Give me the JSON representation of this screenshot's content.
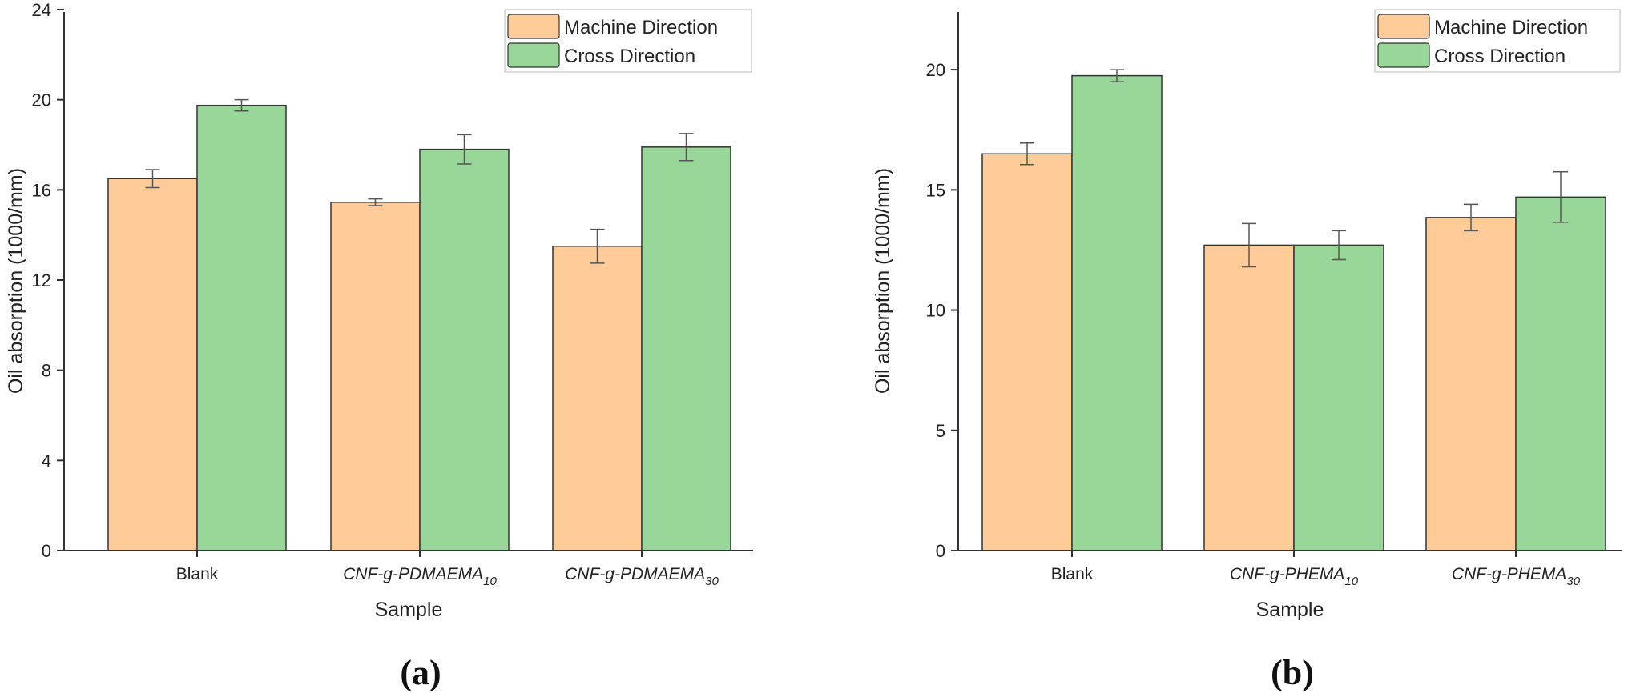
{
  "colors": {
    "machine": "#FFCC99",
    "cross": "#99D699",
    "edge": "#333333",
    "error": "#555555"
  },
  "chart_data": [
    {
      "panel": "(a)",
      "type": "bar",
      "categories": [
        {
          "name": "Blank",
          "sub": ""
        },
        {
          "name": "CNF-g-PDMAEMA",
          "sub": "10"
        },
        {
          "name": "CNF-g-PDMAEMA",
          "sub": "30"
        }
      ],
      "series": [
        {
          "name": "Machine Direction",
          "values": [
            16.5,
            15.45,
            13.5
          ],
          "errors": [
            0.4,
            0.15,
            0.75
          ]
        },
        {
          "name": "Cross Direction",
          "values": [
            19.75,
            17.8,
            17.9
          ],
          "errors": [
            0.25,
            0.65,
            0.6
          ]
        }
      ],
      "xlabel": "Sample",
      "ylabel": "Oil absorption (1000/mm)",
      "ylim": [
        0,
        24
      ],
      "yticks": [
        0,
        4,
        8,
        12,
        16,
        20,
        24
      ],
      "legend": "top-right"
    },
    {
      "panel": "(b)",
      "type": "bar",
      "categories": [
        {
          "name": "Blank",
          "sub": ""
        },
        {
          "name": "CNF-g-PHEMA",
          "sub": "10"
        },
        {
          "name": "CNF-g-PHEMA",
          "sub": "30"
        }
      ],
      "series": [
        {
          "name": "Machine Direction",
          "values": [
            16.5,
            12.7,
            13.85
          ],
          "errors": [
            0.45,
            0.9,
            0.55
          ]
        },
        {
          "name": "Cross Direction",
          "values": [
            19.75,
            12.7,
            14.7
          ],
          "errors": [
            0.25,
            0.6,
            1.05
          ]
        }
      ],
      "xlabel": "Sample",
      "ylabel": "Oil absorption (1000/mm)",
      "ylim": [
        0,
        22.5
      ],
      "yticks": [
        0,
        5,
        10,
        15,
        20
      ],
      "legend": "top-right"
    }
  ]
}
